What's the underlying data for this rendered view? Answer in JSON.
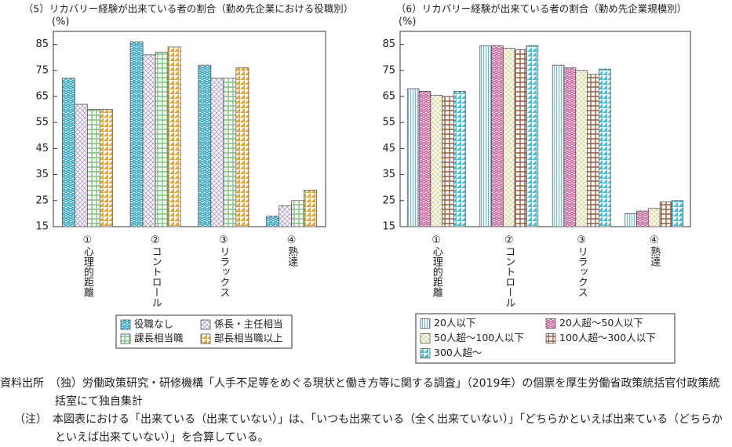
{
  "chart_data": [
    {
      "type": "bar",
      "title": "（5）リカバリー経験が出来ている者の割合（勤め先企業における役職別）",
      "y_label": "(%)",
      "categories": [
        "①心理的距離",
        "②コントロール",
        "③リラックス",
        "④熟達"
      ],
      "series": [
        {
          "name": "役職なし",
          "color": "#2aa6c4",
          "values": [
            72,
            86,
            77,
            19
          ]
        },
        {
          "name": "係長・主任相当",
          "color": "#b9a3d6",
          "values": [
            62,
            81,
            72,
            23
          ]
        },
        {
          "name": "課長相当職",
          "color": "#7cc47a",
          "values": [
            60,
            82,
            72,
            25
          ]
        },
        {
          "name": "部長相当職以上",
          "color": "#f0a02c",
          "values": [
            60,
            84,
            76,
            29
          ]
        }
      ],
      "ylim": [
        15,
        90
      ],
      "yticks": [
        15,
        25,
        35,
        45,
        55,
        65,
        75,
        85
      ]
    },
    {
      "type": "bar",
      "title": "（6）リカバリー経験が出来ている者の割合（勤め先企業規模別）",
      "y_label": "(%)",
      "categories": [
        "①心理的距離",
        "②コントロール",
        "③リラックス",
        "④熟達"
      ],
      "series": [
        {
          "name": "20人以下",
          "color": "#6fb6dc",
          "values": [
            68,
            84.5,
            77,
            20
          ]
        },
        {
          "name": "20人超～50人以下",
          "color": "#d0609c",
          "values": [
            67,
            84.5,
            76,
            21
          ]
        },
        {
          "name": "50人超～100人以下",
          "color": "#d8d890",
          "values": [
            65.5,
            83.5,
            75,
            22
          ]
        },
        {
          "name": "100人超～300人以下",
          "color": "#9a5a3c",
          "values": [
            65,
            83,
            73.5,
            24.5
          ]
        },
        {
          "name": "300人超～",
          "color": "#3cc0e8",
          "values": [
            67,
            84.5,
            75.5,
            25
          ]
        }
      ],
      "ylim": [
        15,
        90
      ],
      "yticks": [
        15,
        25,
        35,
        45,
        55,
        65,
        75,
        85
      ]
    }
  ],
  "notes": [
    "資料出所　（独）労働政策研究・研修機構「人手不足等をめぐる現状と働き方等に関する調査」（2019年）の個票を厚生労働省政策統括官付政策統括室にて独自集計",
    "（注）　本図表における「出来ている（出来ていない）」は、「いつも出来ている（全く出来ていない）」「どちらかといえば出来ている（どちらかといえば出来ていない）」を合算している。"
  ]
}
